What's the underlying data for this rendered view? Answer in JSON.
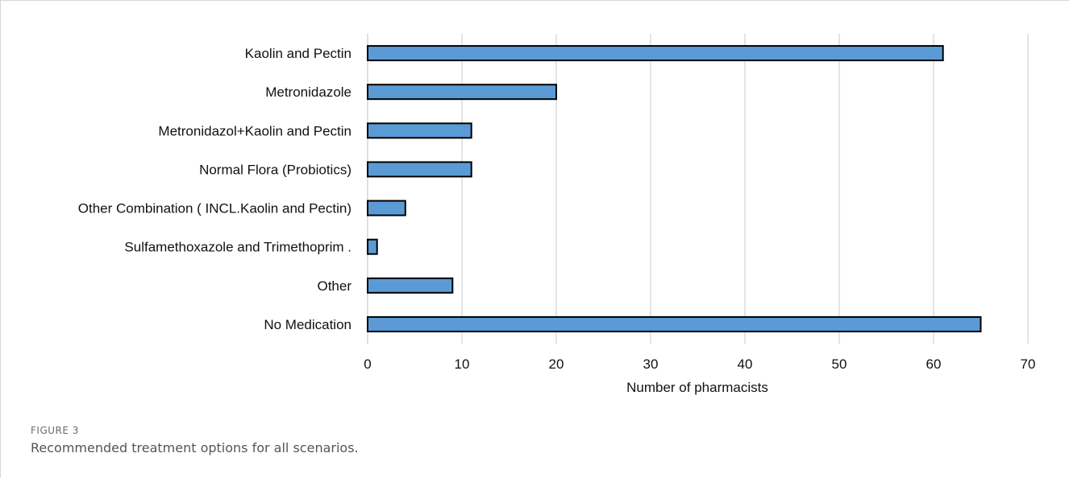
{
  "figure": {
    "label": "FIGURE 3",
    "caption": "Recommended treatment options for all scenarios."
  },
  "chart_data": {
    "type": "bar",
    "orientation": "horizontal",
    "categories": [
      "Kaolin and Pectin",
      "Metronidazole",
      "Metronidazol+Kaolin and Pectin",
      "Normal Flora (Probiotics)",
      "Other Combination ( INCL.Kaolin and Pectin)",
      "Sulfamethoxazole and Trimethoprim .",
      "Other",
      "No Medication"
    ],
    "values": [
      61,
      20,
      11,
      11,
      4,
      1,
      9,
      65
    ],
    "xlabel": "Number of pharmacists",
    "ylabel": "",
    "xlim": [
      0,
      70
    ],
    "xticks": [
      0,
      10,
      20,
      30,
      40,
      50,
      60,
      70
    ],
    "grid": "vertical",
    "bar_color": "#5b9bd5",
    "bar_edge_color": "#000000",
    "legend": "none"
  }
}
